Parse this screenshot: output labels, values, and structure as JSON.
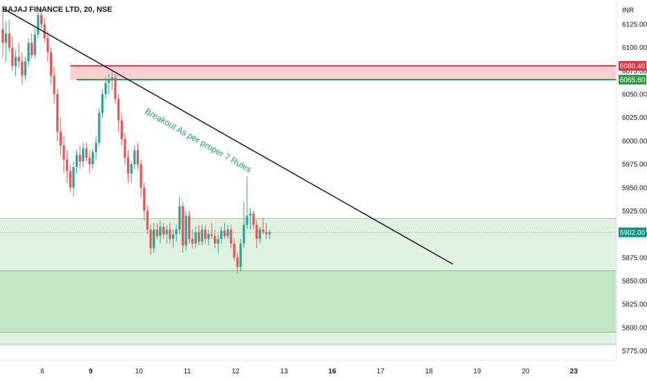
{
  "header": {
    "title": "BAJAJ FINANCE LTD, 20, NSE",
    "currency": "INR"
  },
  "chart_data": {
    "type": "candlestick",
    "y_range": [
      5765,
      6148
    ],
    "y_ticks": [
      "6125.00",
      "6100.00",
      "6075.00",
      "6050.00",
      "6025.00",
      "6000.00",
      "5975.00",
      "5950.00",
      "5925.00",
      "5900.00",
      "5875.00",
      "5850.00",
      "5825.00",
      "5800.00",
      "5775.00"
    ],
    "x_ticks": [
      {
        "label": "6",
        "bold": false
      },
      {
        "label": "9",
        "bold": true
      },
      {
        "label": "10",
        "bold": false
      },
      {
        "label": "11",
        "bold": false
      },
      {
        "label": "12",
        "bold": false
      },
      {
        "label": "13",
        "bold": false
      },
      {
        "label": "16",
        "bold": true
      },
      {
        "label": "17",
        "bold": false
      },
      {
        "label": "18",
        "bold": false
      },
      {
        "label": "19",
        "bold": false
      },
      {
        "label": "20",
        "bold": false
      },
      {
        "label": "23",
        "bold": true
      }
    ],
    "price_tags": [
      {
        "label": "6080.40",
        "value": 6080.4,
        "color": "#e5333f"
      },
      {
        "label": "6065.60",
        "value": 6065.6,
        "color": "#2e9d40"
      },
      {
        "label": "5902.00",
        "value": 5902.0,
        "color": "#089981"
      }
    ],
    "resistance_zone": {
      "top": 6080.4,
      "bottom": 6065.6,
      "color": "#f8d0d3"
    },
    "demand_zone_outer": {
      "top": 5917,
      "bottom": 5782,
      "color": "#dff1df"
    },
    "demand_zone_inner": {
      "top": 5861,
      "bottom": 5795,
      "color": "#c3e4c5"
    },
    "trendline": {
      "start": {
        "bar": 0,
        "price": 6142
      },
      "end": {
        "bar": 140,
        "price": 5868
      }
    },
    "current_price": 5902,
    "annotation": "Breakout As per proper 7 Rules",
    "candles": [
      [
        6120,
        6138,
        6090,
        6105
      ],
      [
        6105,
        6128,
        6085,
        6115
      ],
      [
        6115,
        6130,
        6095,
        6100
      ],
      [
        6100,
        6112,
        6075,
        6080
      ],
      [
        6080,
        6098,
        6070,
        6090
      ],
      [
        6090,
        6105,
        6078,
        6085
      ],
      [
        6085,
        6095,
        6060,
        6070
      ],
      [
        6070,
        6090,
        6065,
        6085
      ],
      [
        6085,
        6110,
        6080,
        6105
      ],
      [
        6105,
        6115,
        6088,
        6092
      ],
      [
        6092,
        6120,
        6088,
        6114
      ],
      [
        6114,
        6140,
        6110,
        6135
      ],
      [
        6135,
        6143,
        6120,
        6125
      ],
      [
        6125,
        6132,
        6105,
        6110
      ],
      [
        6110,
        6118,
        6085,
        6095
      ],
      [
        6095,
        6100,
        6060,
        6070
      ],
      [
        6070,
        6080,
        6040,
        6050
      ],
      [
        6050,
        6055,
        6000,
        6010
      ],
      [
        6010,
        6025,
        5985,
        5995
      ],
      [
        5995,
        6005,
        5965,
        5980
      ],
      [
        5980,
        5990,
        5955,
        5968
      ],
      [
        5968,
        5975,
        5945,
        5950
      ],
      [
        5950,
        5978,
        5940,
        5972
      ],
      [
        5972,
        5990,
        5965,
        5985
      ],
      [
        5985,
        5995,
        5970,
        5978
      ],
      [
        5978,
        5998,
        5972,
        5992
      ],
      [
        5992,
        5998,
        5978,
        5982
      ],
      [
        5982,
        5990,
        5965,
        5975
      ],
      [
        5975,
        5992,
        5970,
        5988
      ],
      [
        5988,
        6005,
        5980,
        5998
      ],
      [
        5998,
        6035,
        5995,
        6030
      ],
      [
        6030,
        6055,
        6025,
        6050
      ],
      [
        6050,
        6068,
        6045,
        6062
      ],
      [
        6062,
        6072,
        6050,
        6066
      ],
      [
        6066,
        6075,
        6055,
        6068
      ],
      [
        6068,
        6072,
        6040,
        6045
      ],
      [
        6045,
        6050,
        6010,
        6022
      ],
      [
        6022,
        6030,
        5995,
        6002
      ],
      [
        6002,
        6008,
        5975,
        5982
      ],
      [
        5982,
        5990,
        5955,
        5965
      ],
      [
        5965,
        5978,
        5955,
        5975
      ],
      [
        5975,
        5995,
        5970,
        5990
      ],
      [
        5990,
        5998,
        5970,
        5975
      ],
      [
        5975,
        5980,
        5940,
        5950
      ],
      [
        5950,
        5955,
        5915,
        5925
      ],
      [
        5925,
        5930,
        5900,
        5905
      ],
      [
        5905,
        5910,
        5878,
        5885
      ],
      [
        5885,
        5912,
        5880,
        5905
      ],
      [
        5905,
        5912,
        5895,
        5898
      ],
      [
        5898,
        5915,
        5890,
        5908
      ],
      [
        5908,
        5912,
        5895,
        5900
      ],
      [
        5900,
        5910,
        5890,
        5905
      ],
      [
        5905,
        5912,
        5890,
        5895
      ],
      [
        5895,
        5905,
        5885,
        5900
      ],
      [
        5900,
        5910,
        5892,
        5905
      ],
      [
        5905,
        5940,
        5900,
        5930
      ],
      [
        5930,
        5935,
        5880,
        5888
      ],
      [
        5888,
        5925,
        5882,
        5920
      ],
      [
        5920,
        5925,
        5890,
        5895
      ],
      [
        5895,
        5905,
        5885,
        5890
      ],
      [
        5890,
        5908,
        5885,
        5902
      ],
      [
        5902,
        5910,
        5888,
        5892
      ],
      [
        5892,
        5910,
        5888,
        5905
      ],
      [
        5905,
        5910,
        5890,
        5895
      ],
      [
        5895,
        5905,
        5888,
        5900
      ],
      [
        5900,
        5912,
        5895,
        5898
      ],
      [
        5898,
        5905,
        5885,
        5890
      ],
      [
        5890,
        5900,
        5880,
        5895
      ],
      [
        5895,
        5908,
        5890,
        5904
      ],
      [
        5904,
        5912,
        5895,
        5898
      ],
      [
        5898,
        5910,
        5895,
        5905
      ],
      [
        5905,
        5910,
        5885,
        5890
      ],
      [
        5890,
        5895,
        5872,
        5875
      ],
      [
        5875,
        5880,
        5858,
        5865
      ],
      [
        5865,
        5895,
        5860,
        5890
      ],
      [
        5890,
        5935,
        5885,
        5910
      ],
      [
        5910,
        5962,
        5905,
        5920
      ],
      [
        5920,
        5928,
        5905,
        5922
      ],
      [
        5922,
        5925,
        5905,
        5910
      ],
      [
        5910,
        5915,
        5885,
        5895
      ],
      [
        5895,
        5908,
        5890,
        5905
      ],
      [
        5905,
        5918,
        5900,
        5902
      ],
      [
        5902,
        5912,
        5895,
        5900
      ],
      [
        5900,
        5905,
        5895,
        5902
      ]
    ]
  }
}
